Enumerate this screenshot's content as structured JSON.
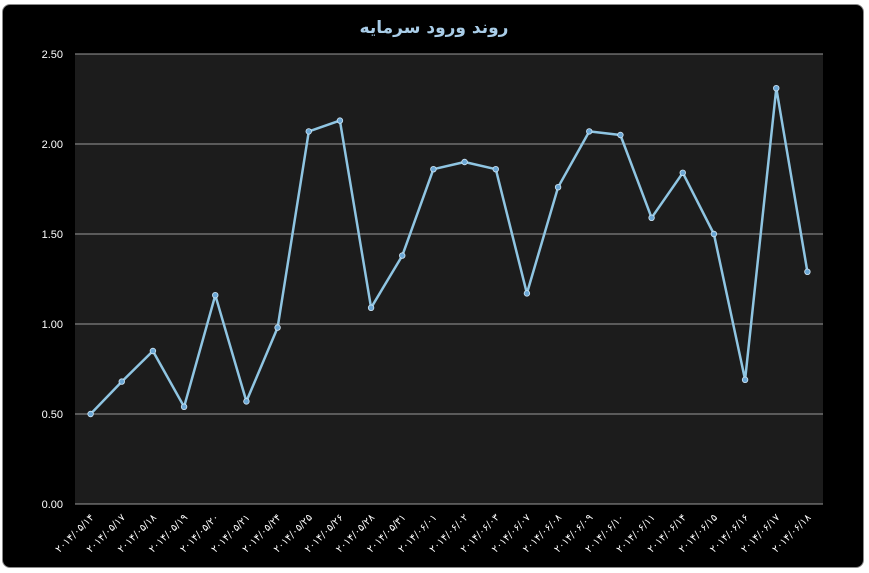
{
  "chart_data": {
    "type": "line",
    "title": "روند ورود سرمایه",
    "xlabel": "",
    "ylabel": "",
    "ylim": [
      0,
      2.5
    ],
    "yticks": [
      "0.00",
      "0.50",
      "1.00",
      "1.50",
      "2.00",
      "2.50"
    ],
    "grid": true,
    "legend": "none",
    "categories": [
      "۲۰۱۴/۰۵/۱۴",
      "۲۰۱۴/۰۵/۱۷",
      "۲۰۱۴/۰۵/۱۸",
      "۲۰۱۴/۰۵/۱۹",
      "۲۰۱۴/۰۵/۲۰",
      "۲۰۱۴/۰۵/۲۱",
      "۲۰۱۴/۰۵/۲۴",
      "۲۰۱۴/۰۵/۲۵",
      "۲۰۱۴/۰۵/۲۶",
      "۲۰۱۴/۰۵/۲۸",
      "۲۰۱۴/۰۵/۳۱",
      "۲۰۱۴/۰۶/۰۱",
      "۲۰۱۴/۰۶/۰۲",
      "۲۰۱۴/۰۶/۰۳",
      "۲۰۱۴/۰۶/۰۷",
      "۲۰۱۴/۰۶/۰۸",
      "۲۰۱۴/۰۶/۰۹",
      "۲۰۱۴/۰۶/۱۰",
      "۲۰۱۴/۰۶/۱۱",
      "۲۰۱۴/۰۶/۱۴",
      "۲۰۱۴/۰۶/۱۵",
      "۲۰۱۴/۰۶/۱۶",
      "۲۰۱۴/۰۶/۱۷",
      "۲۰۱۴/۰۶/۱۸"
    ],
    "series": [
      {
        "values": [
          0.5,
          0.68,
          0.85,
          0.54,
          1.16,
          0.57,
          0.98,
          2.07,
          2.13,
          1.09,
          1.38,
          1.86,
          1.9,
          1.86,
          1.17,
          1.76,
          2.07,
          2.05,
          1.59,
          1.84,
          1.5,
          0.69,
          2.31,
          1.29
        ]
      }
    ],
    "colors": {
      "background": "#000000",
      "plot_area": "#1c1c1c",
      "gridline": "#9a9a9a",
      "line": "#8fc5e2",
      "marker": "#6aa6d4",
      "title": "#a9cde8",
      "text": "#ffffff"
    }
  }
}
